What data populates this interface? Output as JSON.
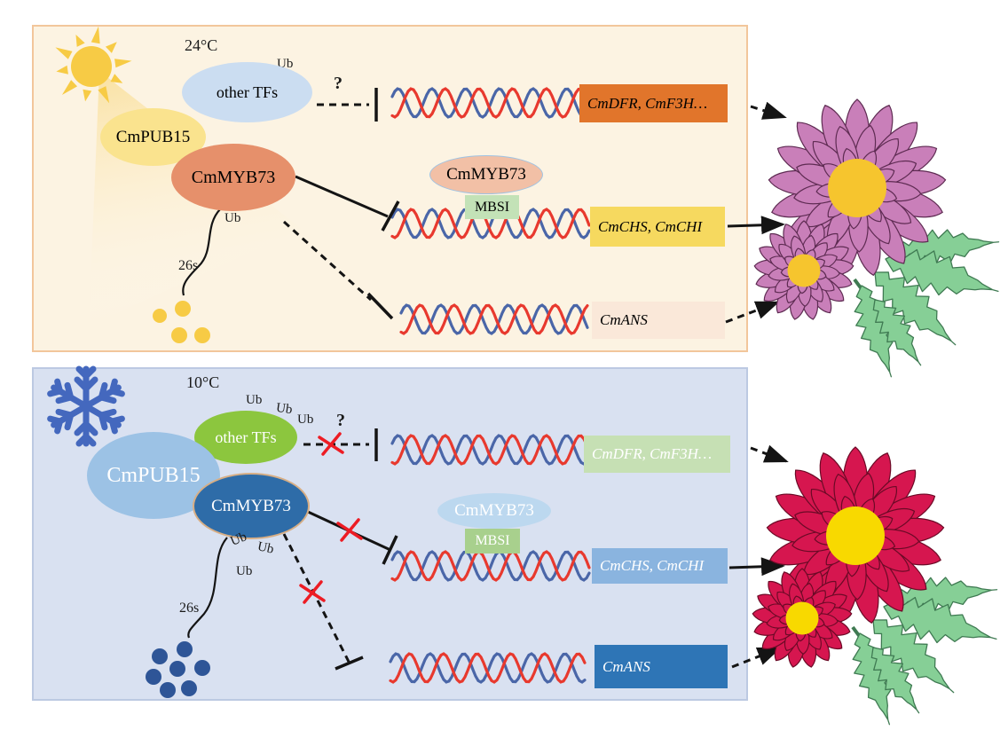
{
  "panels": {
    "warm": {
      "temperature": "24°C",
      "ub_label": "Ub",
      "proteasome_label": "26s",
      "question_mark": "?",
      "other_tfs_label": "other TFs",
      "pub15_label": "CmPUB15",
      "myb73_label": "CmMYB73",
      "myb73_bound_label": "CmMYB73",
      "mbsi_label": "MBSI",
      "gene_dfr": "CmDFR, CmF3H…",
      "gene_chs": "CmCHS, CmCHI",
      "gene_ans": "CmANS"
    },
    "cold": {
      "temperature": "10°C",
      "ub_label": "Ub",
      "proteasome_label": "26s",
      "question_mark": "?",
      "other_tfs_label": "other TFs",
      "pub15_label": "CmPUB15",
      "myb73_label": "CmMYB73",
      "myb73_bound_label": "CmMYB73",
      "mbsi_label": "MBSI",
      "gene_dfr": "CmDFR, CmF3H…",
      "gene_chs": "CmCHS, CmCHI",
      "gene_ans": "CmANS"
    }
  },
  "icons": {
    "sun": "sun-icon",
    "snowflake": "snowflake-icon",
    "dna": "dna-helix-icon",
    "inhibition": "inhibition-bar-icon",
    "red_x": "red-x-icon",
    "flower_warm": "chrysanthemum-magenta-icon",
    "flower_cold": "chrysanthemum-red-icon"
  },
  "colors": {
    "warm_panel_bg": "#FCF3E2",
    "warm_panel_border": "#F2C69B",
    "cold_panel_bg": "#D9E1F1",
    "cold_panel_border": "#BCC9E2",
    "sun": "#F7CB45",
    "beam": "#F8D26B",
    "snowflake": "#4468BE",
    "dna_red": "#E8392E",
    "dna_blue": "#4A66A8",
    "connector": "#141414",
    "warm_other_tfs": "#CBDDF1",
    "warm_pub15": "#FAE38E",
    "warm_myb73": "#E6906B",
    "warm_myb73_bound": "#F2C0A6",
    "warm_myb73_bound_border": "#9FC3E3",
    "warm_mbsi": "#C3E2B7",
    "warm_gene_dfr": "#E1752B",
    "warm_gene_chs": "#F6D95F",
    "warm_gene_ans": "#FAE8D9",
    "cold_other_tfs": "#8CC63E",
    "cold_pub15": "#9CC2E5",
    "cold_myb73": "#2E6CA8",
    "cold_myb73_border": "#D7AE85",
    "cold_myb73_bound": "#BCD8EF",
    "cold_mbsi": "#A8D08D",
    "cold_gene_dfr": "#C6E0B4",
    "cold_gene_chs": "#8AB4DF",
    "cold_gene_ans": "#2E75B6",
    "x_mark": "#ED1C24",
    "warm_dots": "#F7CB45",
    "cold_dots": "#2E5597",
    "flower_warm_petal": "#C97FB9",
    "flower_warm_petal_stroke": "#5E2B52",
    "flower_warm_center": "#F6C52E",
    "flower_cold_petal": "#D6164F",
    "flower_cold_petal_stroke": "#6B0A26",
    "flower_cold_center": "#F8D900",
    "leaf": "#86CF96",
    "leaf_stroke": "#3F7A52"
  }
}
